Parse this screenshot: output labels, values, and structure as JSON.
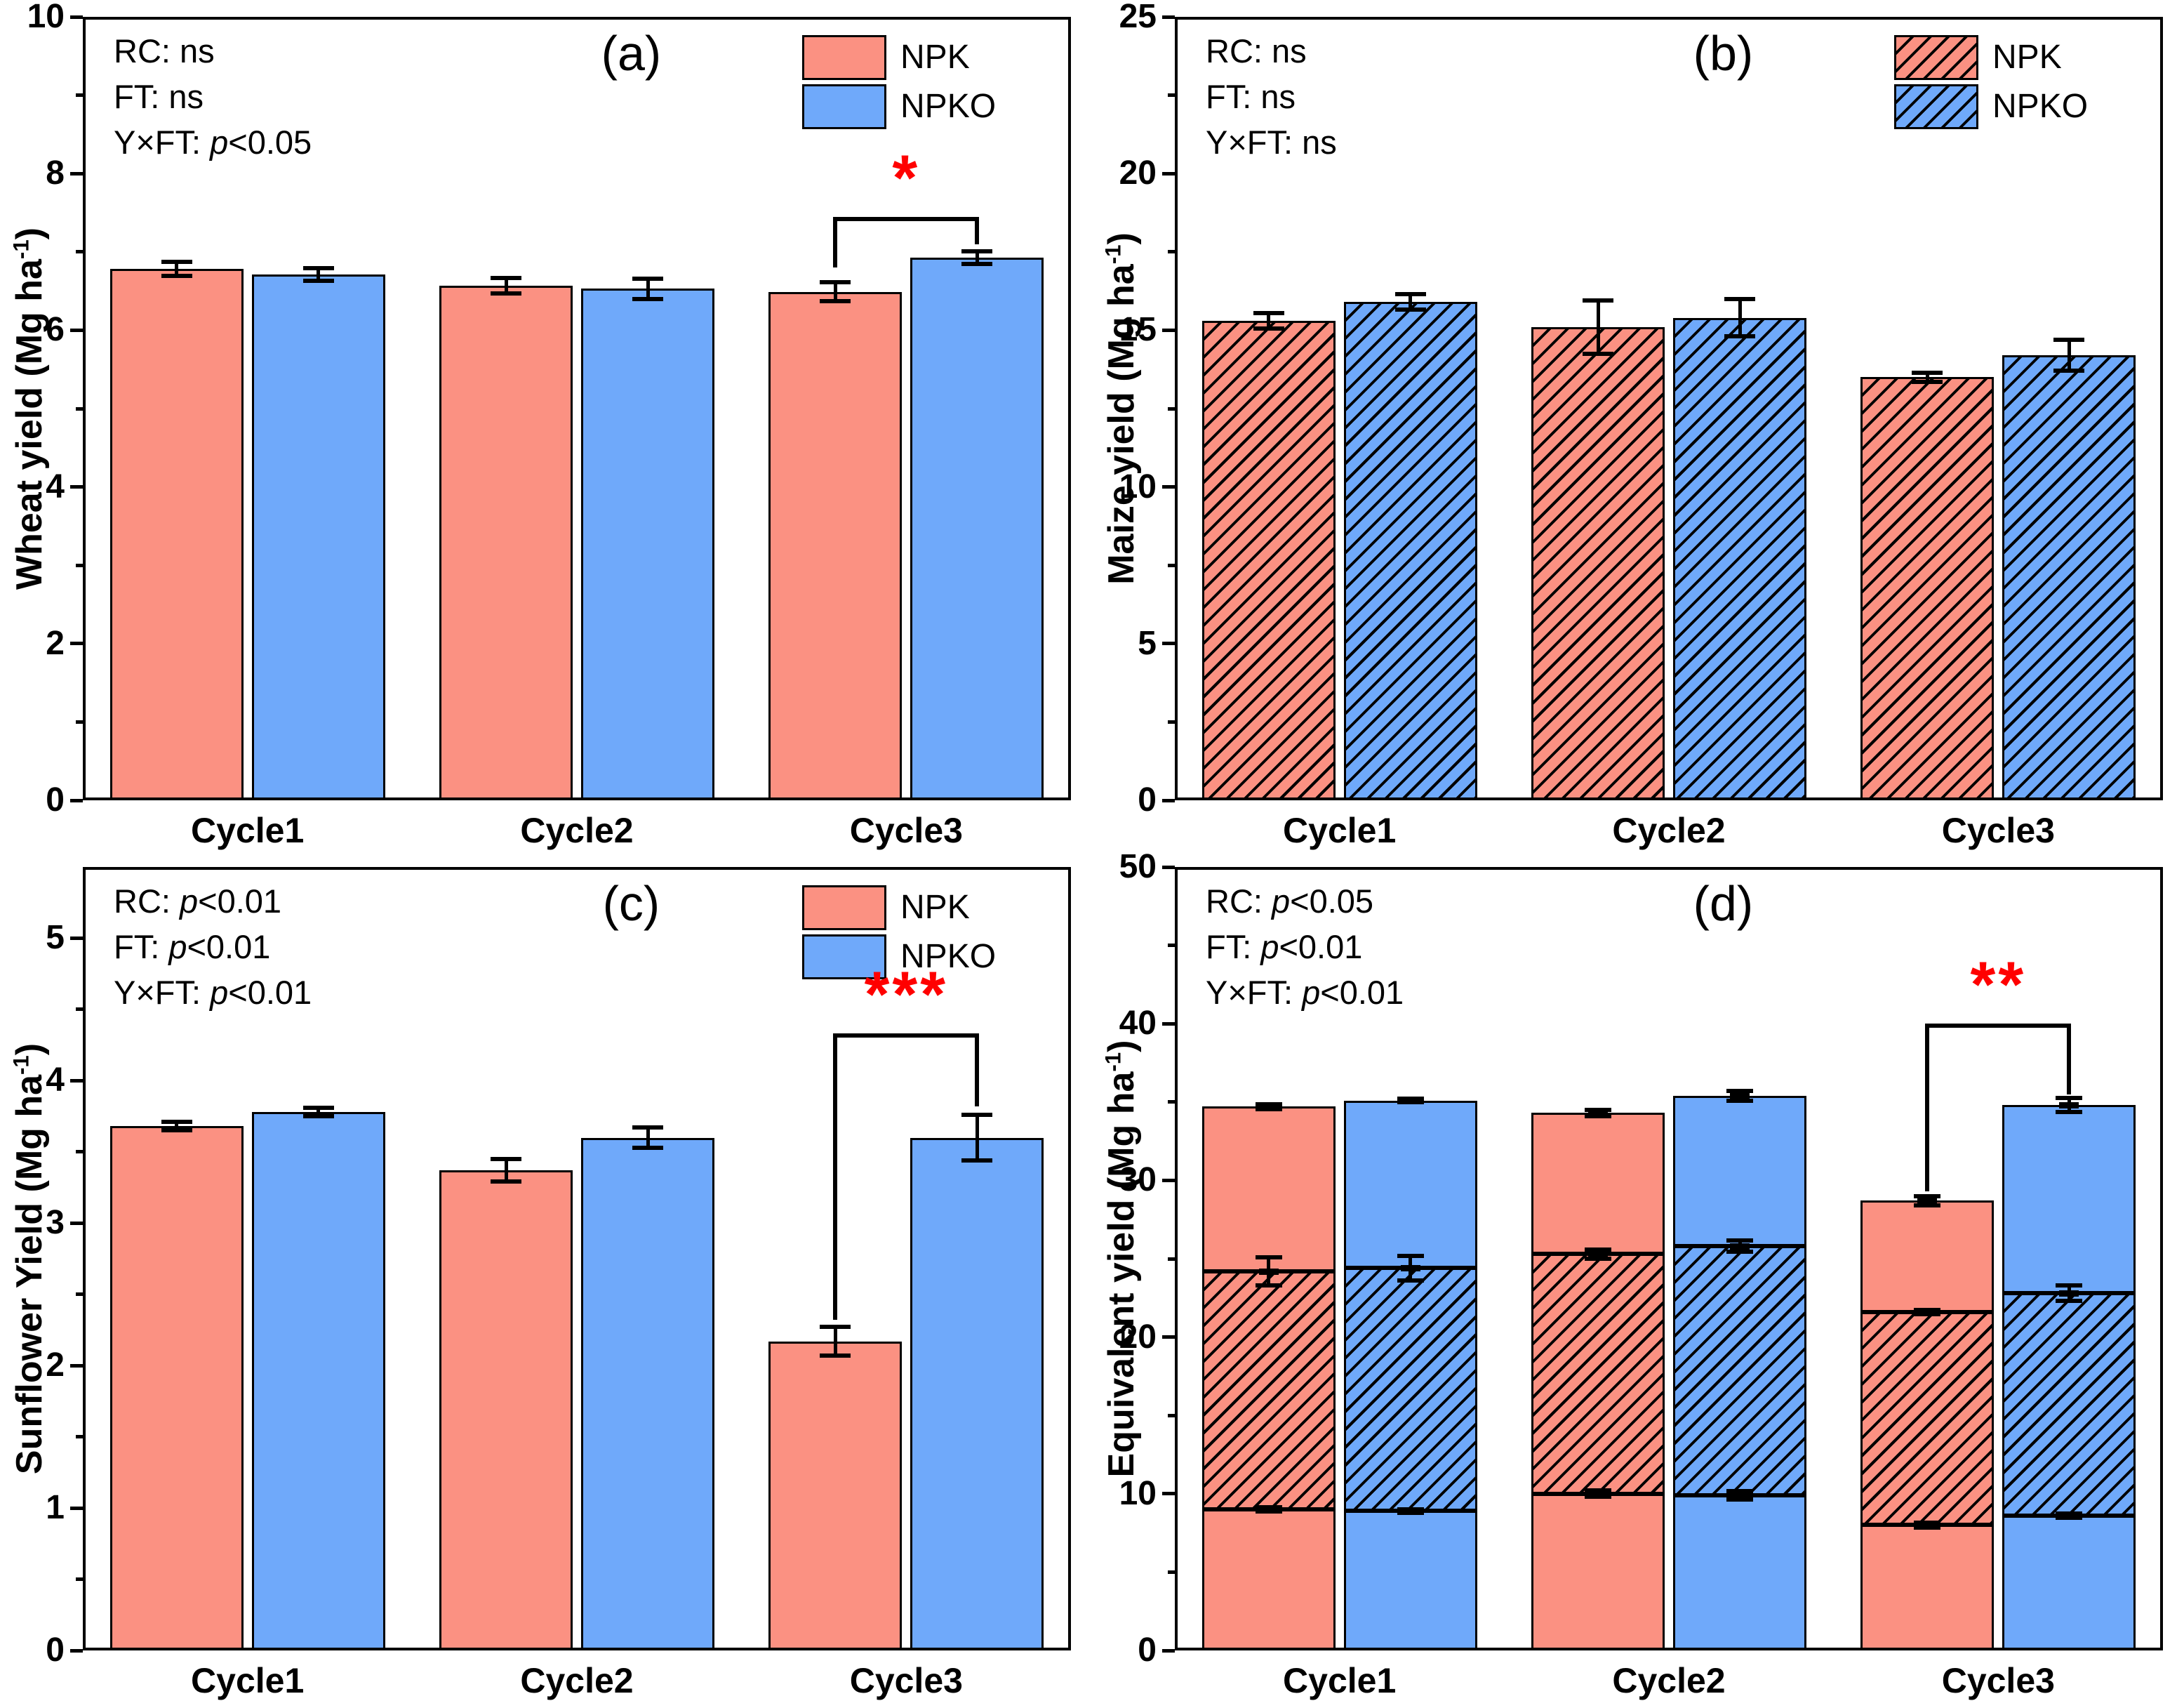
{
  "figure": {
    "background": "#ffffff",
    "colors": {
      "npk_fill": "#FB9182",
      "npko_fill": "#6FA9FA",
      "bar_border": "#000000",
      "axis": "#000000",
      "significance": "#FF0000"
    }
  },
  "chart_data": [
    {
      "panel": "a",
      "type": "bar",
      "panel_letter": "(a)",
      "ylabel": "Wheat yield (Mg ha⁻¹)",
      "ylim": [
        0,
        10
      ],
      "ytick_step": 2,
      "yminor_step": 1,
      "grid": false,
      "categories": [
        "Cycle1",
        "Cycle2",
        "Cycle3"
      ],
      "series": [
        {
          "name": "NPK",
          "hatch": false,
          "values": [
            6.78,
            6.57,
            6.49
          ],
          "errors": [
            0.09,
            0.1,
            0.12
          ]
        },
        {
          "name": "NPKO",
          "hatch": false,
          "values": [
            6.71,
            6.53,
            6.93
          ],
          "errors": [
            0.08,
            0.13,
            0.08
          ]
        }
      ],
      "stats": [
        "RC: ns",
        "FT: ns",
        "Y×FT: p<0.05"
      ],
      "legend": {
        "show": true,
        "hatch": false,
        "position": "top-right"
      },
      "significance": {
        "show": true,
        "label": "*",
        "category": 2,
        "bracket_y": 7.45,
        "left_arm_y": 6.8,
        "right_arm_y": 7.1
      }
    },
    {
      "panel": "b",
      "type": "bar",
      "panel_letter": "(b)",
      "ylabel": "Maize yield (Mg ha⁻¹)",
      "ylim": [
        0,
        25
      ],
      "ytick_step": 5,
      "yminor_step": 2.5,
      "grid": false,
      "categories": [
        "Cycle1",
        "Cycle2",
        "Cycle3"
      ],
      "series": [
        {
          "name": "NPK",
          "hatch": true,
          "values": [
            15.3,
            15.1,
            13.5
          ],
          "errors": [
            0.25,
            0.85,
            0.15
          ]
        },
        {
          "name": "NPKO",
          "hatch": true,
          "values": [
            15.9,
            15.4,
            14.2
          ],
          "errors": [
            0.25,
            0.6,
            0.5
          ]
        }
      ],
      "stats": [
        "RC: ns",
        "FT: ns",
        "Y×FT: ns"
      ],
      "legend": {
        "show": true,
        "hatch": true,
        "position": "top-right"
      },
      "significance": {
        "show": false
      }
    },
    {
      "panel": "c",
      "type": "bar",
      "panel_letter": "(c)",
      "ylabel": "Sunflower Yield (Mg ha⁻¹)",
      "ylim": [
        0,
        5.5
      ],
      "ytick_step": 1,
      "yminor_step": 0.5,
      "grid": false,
      "categories": [
        "Cycle1",
        "Cycle2",
        "Cycle3"
      ],
      "series": [
        {
          "name": "NPK",
          "hatch": false,
          "values": [
            3.68,
            3.37,
            2.17
          ],
          "errors": [
            0.03,
            0.08,
            0.1
          ]
        },
        {
          "name": "NPKO",
          "hatch": false,
          "values": [
            3.78,
            3.6,
            3.6
          ],
          "errors": [
            0.03,
            0.07,
            0.16
          ]
        }
      ],
      "stats": [
        "RC: p<0.01",
        "FT: p<0.01",
        "Y×FT: p<0.01"
      ],
      "legend": {
        "show": true,
        "hatch": false,
        "position": "top-right"
      },
      "significance": {
        "show": true,
        "label": "***",
        "category": 2,
        "bracket_y": 4.33,
        "left_arm_y": 2.32,
        "right_arm_y": 3.82
      }
    },
    {
      "panel": "d",
      "type": "stacked-bar",
      "panel_letter": "(d)",
      "ylabel": "Equivalent yield (Mg ha⁻¹)",
      "ylim": [
        0,
        50
      ],
      "ytick_step": 10,
      "yminor_step": 5,
      "grid": false,
      "categories": [
        "Cycle1",
        "Cycle2",
        "Cycle3"
      ],
      "segment_hatch": [
        false,
        true,
        false
      ],
      "series": [
        {
          "name": "NPK",
          "segments": [
            [
              9.0,
              15.2,
              10.5
            ],
            [
              10.0,
              15.3,
              9.0
            ],
            [
              8.0,
              13.6,
              7.1
            ]
          ],
          "boundary_errors": [
            [
              0.12,
              0.9,
              0.15
            ],
            [
              0.2,
              0.3,
              0.2
            ],
            [
              0.15,
              0.15,
              0.3
            ]
          ]
        },
        {
          "name": "NPKO",
          "segments": [
            [
              8.9,
              15.5,
              10.7
            ],
            [
              9.9,
              15.9,
              9.6
            ],
            [
              8.6,
              14.2,
              12.0
            ]
          ],
          "boundary_errors": [
            [
              0.12,
              0.8,
              0.1
            ],
            [
              0.25,
              0.35,
              0.3
            ],
            [
              0.12,
              0.5,
              0.45
            ]
          ]
        }
      ],
      "stats": [
        "RC: p<0.05",
        "FT: p<0.01",
        "Y×FT: p<0.01"
      ],
      "legend": {
        "show": false
      },
      "significance": {
        "show": true,
        "label": "**",
        "category": 2,
        "bracket_y": 40.0,
        "left_arm_y": 29.3,
        "right_arm_y": 35.5
      }
    }
  ]
}
